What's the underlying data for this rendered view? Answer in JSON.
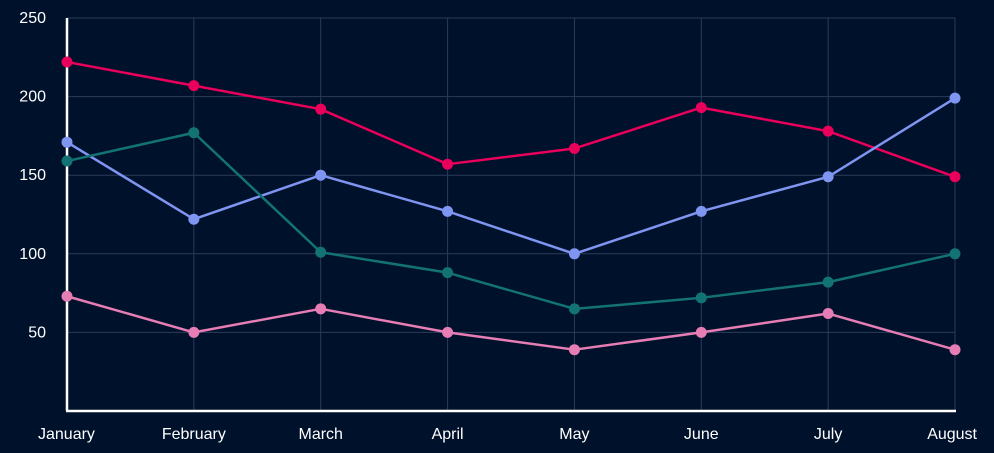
{
  "chart_data": {
    "type": "line",
    "title": "",
    "xlabel": "",
    "ylabel": "",
    "categories": [
      "January",
      "February",
      "March",
      "April",
      "May",
      "June",
      "July",
      "August"
    ],
    "ylim": [
      0,
      250
    ],
    "yticks": [
      50,
      100,
      150,
      200,
      250
    ],
    "grid": true,
    "legend": "none",
    "series": [
      {
        "color": "#e8005a",
        "values": [
          222,
          207,
          192,
          157,
          167,
          193,
          178,
          149
        ]
      },
      {
        "color": "#7f95f2",
        "values": [
          171,
          122,
          150,
          127,
          100,
          127,
          149,
          199
        ]
      },
      {
        "color": "#137374",
        "values": [
          159,
          177,
          101,
          88,
          65,
          72,
          82,
          100
        ]
      },
      {
        "color": "#e67db5",
        "values": [
          73,
          50,
          65,
          50,
          39,
          50,
          62,
          39
        ]
      }
    ]
  }
}
